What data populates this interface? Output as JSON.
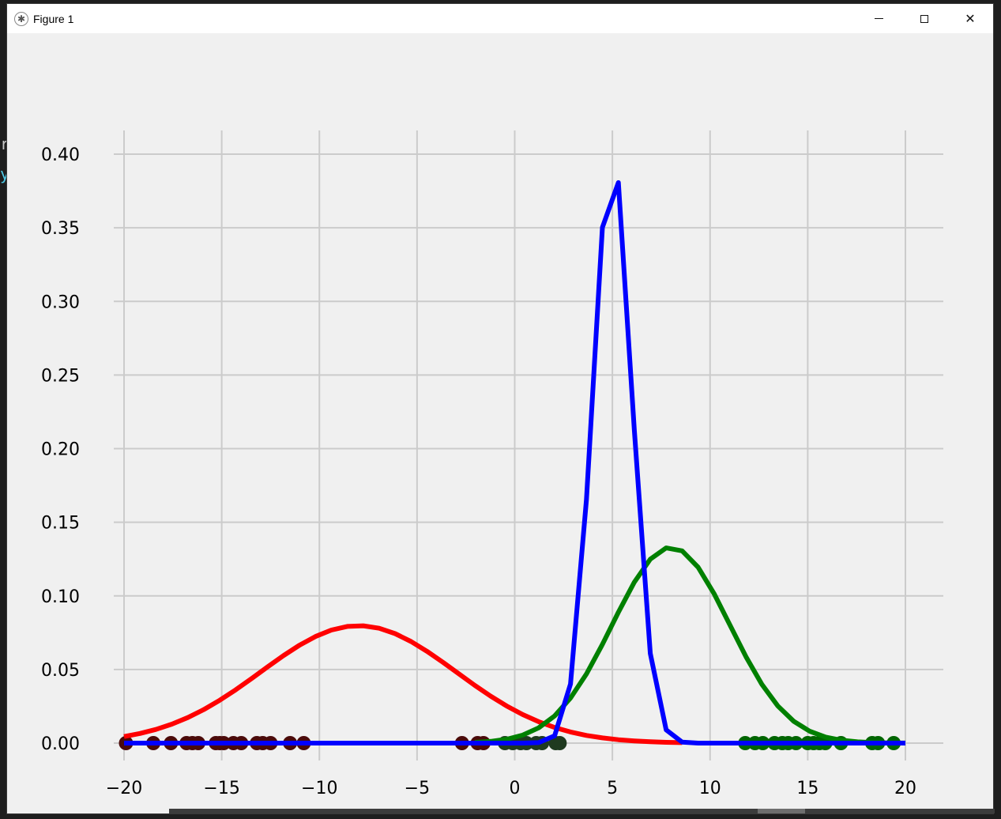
{
  "window": {
    "title": "Figure 1",
    "icon": "matplotlib-logo-icon",
    "controls": [
      "minimize",
      "maximize",
      "close"
    ]
  },
  "chart_data": {
    "type": "line",
    "title": "",
    "xlabel": "",
    "ylabel": "",
    "xlim": [
      -20,
      20
    ],
    "ylim": [
      0,
      0.4
    ],
    "grid": true,
    "x_ticks": [
      -20,
      -15,
      -10,
      -5,
      0,
      5,
      10,
      15,
      20
    ],
    "x_tick_labels": [
      "−20",
      "−15",
      "−10",
      "−5",
      "0",
      "5",
      "10",
      "15",
      "20"
    ],
    "y_ticks": [
      0,
      0.05,
      0.1,
      0.15,
      0.2,
      0.25,
      0.3,
      0.35,
      0.4
    ],
    "y_tick_labels": [
      "0.00",
      "0.05",
      "0.10",
      "0.15",
      "0.20",
      "0.25",
      "0.30",
      "0.35",
      "0.40"
    ],
    "series": [
      {
        "color": "#ff0000",
        "kind": "gaussian",
        "mean": -8,
        "std": 5,
        "x_range": [
          -20,
          8.5
        ]
      },
      {
        "color": "#008000",
        "kind": "gaussian",
        "mean": 8,
        "std": 3,
        "x_range": [
          -2,
          20
        ]
      },
      {
        "color": "#0000ff",
        "kind": "gaussian",
        "mean": 5,
        "std": 1,
        "x_range": [
          -20,
          20
        ]
      }
    ],
    "points": [
      {
        "color": "#4a0a0a",
        "x": [
          -19.9,
          -18.5,
          -17.6,
          -16.8,
          -16.5,
          -16.2,
          -15.3,
          -15.1,
          -14.9,
          -14.4,
          -14.0,
          -13.2,
          -12.9,
          -12.5,
          -11.5,
          -10.8,
          -2.7,
          -1.9,
          -1.6
        ]
      },
      {
        "color": "#1f3a1f",
        "x": [
          -0.5,
          -0.1,
          0.3,
          0.6,
          1.1,
          1.4,
          2.1,
          2.3
        ]
      },
      {
        "color": "#006400",
        "x": [
          11.8,
          12.3,
          12.7,
          13.3,
          13.7,
          14.0,
          14.4,
          15.0,
          15.3,
          15.6,
          15.9,
          16.7,
          18.3,
          18.6,
          19.4
        ]
      }
    ]
  }
}
